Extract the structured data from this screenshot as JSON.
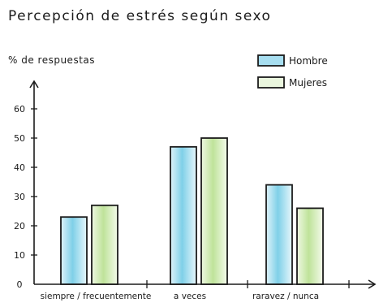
{
  "chart_data": {
    "type": "bar",
    "title": "Percepción de estrés según sexo",
    "ylabel": "% de respuestas",
    "xlabel": "",
    "ylim": [
      0,
      60
    ],
    "yticks": [
      0,
      10,
      20,
      30,
      40,
      50,
      60
    ],
    "categories": [
      "siempre / frecuentemente",
      "a veces",
      "raravez / nunca"
    ],
    "series": [
      {
        "name": "Hombre",
        "values": [
          23,
          47,
          34
        ],
        "color": "#7fd0e8"
      },
      {
        "name": "Mujeres",
        "values": [
          27,
          50,
          26
        ],
        "color": "#bfe39a"
      }
    ],
    "legend_position": "top-right",
    "grid": false
  }
}
